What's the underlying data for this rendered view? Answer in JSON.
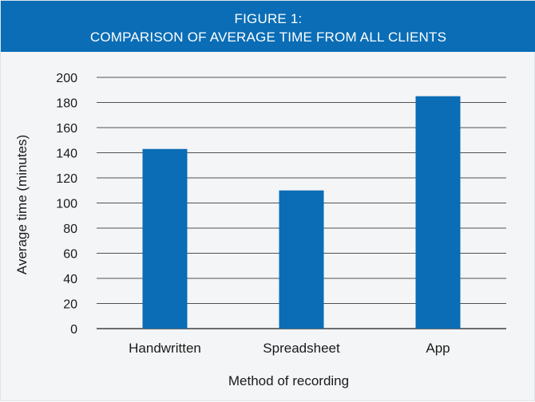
{
  "header": {
    "title_line1": "FIGURE 1:",
    "title_line2": "COMPARISON OF AVERAGE TIME FROM ALL CLIENTS"
  },
  "colors": {
    "header_bg": "#0a6db6",
    "bar": "#0a6db6",
    "plot_bg": "#f4f5f7"
  },
  "chart_data": {
    "type": "bar",
    "title": "FIGURE 1: COMPARISON OF AVERAGE TIME FROM ALL CLIENTS",
    "categories": [
      "Handwritten",
      "Spreadsheet",
      "App"
    ],
    "values": [
      143,
      110,
      185
    ],
    "xlabel": "Method of recording",
    "ylabel": "Average time (minutes)",
    "ylim": [
      0,
      200
    ],
    "yticks": [
      0,
      20,
      40,
      60,
      80,
      100,
      120,
      140,
      160,
      180,
      200
    ],
    "grid": true,
    "legend": "none"
  }
}
